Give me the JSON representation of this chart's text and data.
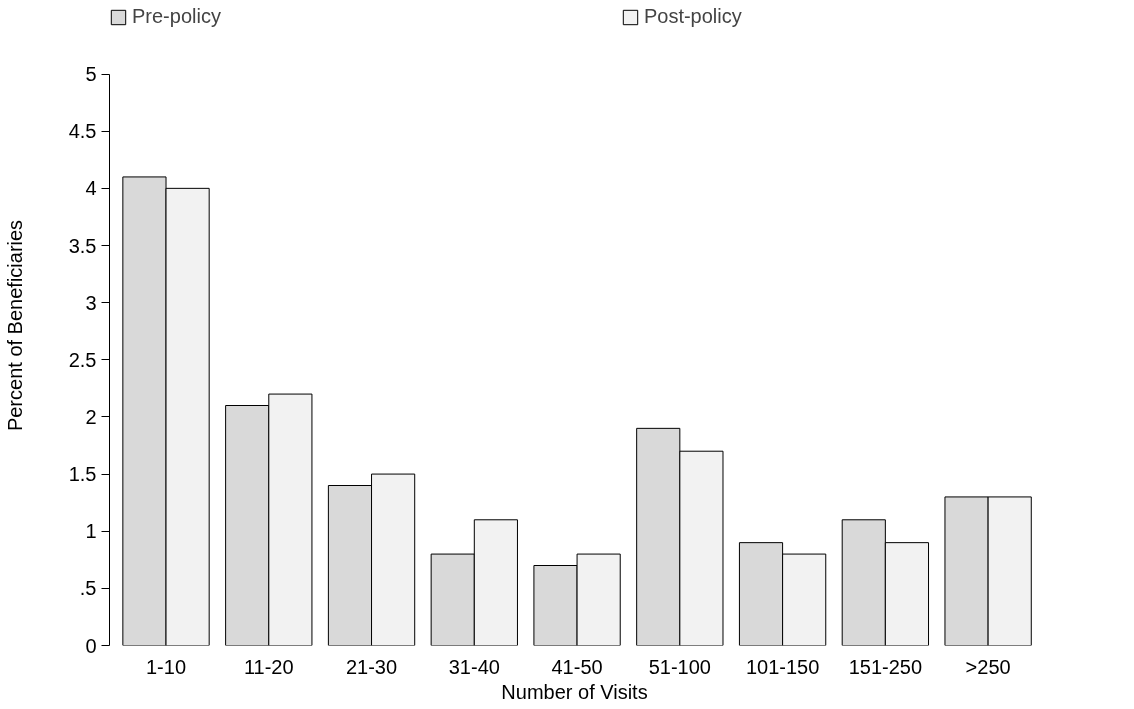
{
  "chart_data": {
    "type": "bar",
    "xlabel": "Number of Visits",
    "ylabel": "Percent of Beneficiaries",
    "categories": [
      "1-10",
      "11-20",
      "21-30",
      "31-40",
      "41-50",
      "51-100",
      "101-150",
      "151-250",
      ">250"
    ],
    "series": [
      {
        "name": "Pre-policy",
        "color": "#d9d9d9",
        "values": [
          4.1,
          2.1,
          1.4,
          0.8,
          0.7,
          1.9,
          0.9,
          1.1,
          1.3
        ]
      },
      {
        "name": "Post-policy",
        "color": "#f2f2f2",
        "values": [
          4.0,
          2.2,
          1.5,
          1.1,
          0.8,
          1.7,
          0.8,
          0.9,
          1.3
        ]
      }
    ],
    "ylim": [
      0,
      5
    ],
    "yticks": [
      0,
      {
        "value": 0.5,
        "label": ".5"
      },
      1,
      1.5,
      2,
      2.5,
      3,
      3.5,
      4,
      4.5,
      5
    ],
    "grid": false,
    "legend": "top"
  }
}
